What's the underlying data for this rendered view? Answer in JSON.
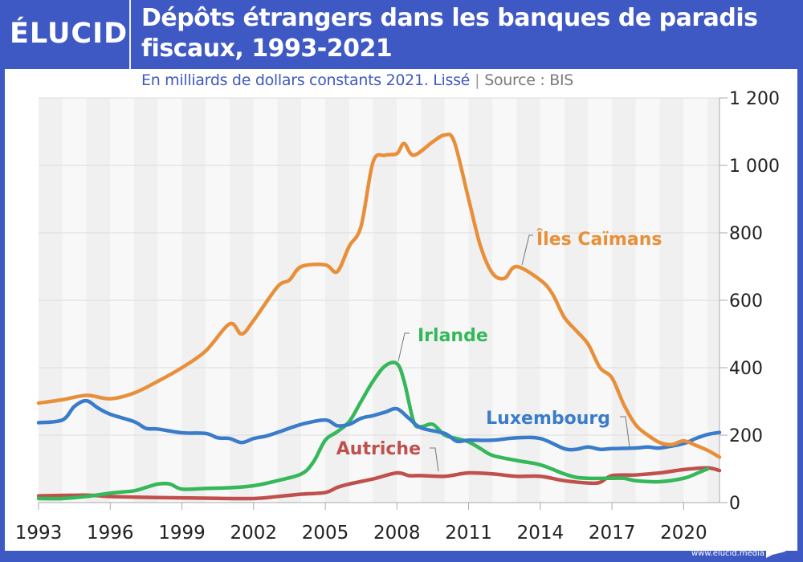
{
  "header": {
    "logo": "ÉLUCID",
    "title_line1": "Dépôts étrangers dans les banques de paradis",
    "title_line2": "fiscaux, 1993-2021",
    "subtitle": "En milliards de dollars constants 2021. Lissé",
    "separator": "|",
    "source": "Source : BIS"
  },
  "footer": {
    "url": "www.elucid.media"
  },
  "colors": {
    "brand": "#3f59c4",
    "iles_caimans": "#e88f3a",
    "luxembourg": "#3a7cc9",
    "irlande": "#34b85a",
    "autriche": "#c0504d"
  },
  "chart_data": {
    "type": "line",
    "title": "Dépôts étrangers dans les banques de paradis fiscaux, 1993-2021",
    "subtitle": "En milliards de dollars constants 2021. Lissé | Source : BIS",
    "xlabel": "",
    "ylabel": "",
    "xlim": [
      1993,
      2021.5
    ],
    "ylim": [
      0,
      1200
    ],
    "grid": true,
    "y_axis_position": "right",
    "x_ticks": [
      "1993",
      "1996",
      "1999",
      "2002",
      "2005",
      "2008",
      "2011",
      "2014",
      "2017",
      "2020"
    ],
    "y_ticks": [
      "0",
      "200",
      "400",
      "600",
      "800",
      "1 000",
      "1 200"
    ],
    "series": [
      {
        "name": "Îles Caïmans",
        "color": "#e88f3a",
        "x": [
          1993,
          1994,
          1995,
          1996,
          1997,
          1998,
          1999,
          2000,
          2001,
          2001.5,
          2002,
          2003,
          2003.5,
          2004,
          2005,
          2005.5,
          2006,
          2006.5,
          2007,
          2007.5,
          2008,
          2008.3,
          2008.7,
          2009.5,
          2010,
          2010.4,
          2011,
          2011.5,
          2012,
          2012.5,
          2013,
          2014,
          2014.5,
          2015,
          2015.5,
          2016,
          2016.5,
          2017,
          2017.5,
          2018,
          2018.5,
          2019,
          2019.5,
          2020,
          2020.5,
          2021,
          2021.5
        ],
        "values": [
          295,
          305,
          318,
          308,
          325,
          360,
          400,
          450,
          530,
          500,
          540,
          640,
          660,
          700,
          705,
          685,
          760,
          820,
          1010,
          1030,
          1035,
          1065,
          1030,
          1070,
          1090,
          1070,
          900,
          760,
          680,
          665,
          700,
          660,
          620,
          550,
          510,
          470,
          400,
          370,
          290,
          230,
          200,
          178,
          172,
          183,
          170,
          155,
          135
        ]
      },
      {
        "name": "Luxembourg",
        "color": "#3a7cc9",
        "x": [
          1993,
          1994,
          1994.5,
          1995,
          1995.5,
          1996,
          1997,
          1997.5,
          1998,
          1999,
          2000,
          2000.5,
          2001,
          2001.5,
          2002,
          2002.5,
          2003,
          2004,
          2005,
          2005.5,
          2006,
          2006.5,
          2007,
          2007.5,
          2008,
          2008.5,
          2009,
          2010,
          2010.5,
          2011,
          2012,
          2013,
          2014,
          2015,
          2015.5,
          2016,
          2016.5,
          2017,
          2018,
          2018.5,
          2019,
          2020,
          2020.5,
          2021,
          2021.5
        ],
        "values": [
          237,
          245,
          285,
          302,
          280,
          262,
          240,
          220,
          218,
          207,
          205,
          192,
          190,
          178,
          190,
          197,
          208,
          232,
          245,
          228,
          232,
          250,
          258,
          268,
          278,
          250,
          222,
          205,
          182,
          185,
          185,
          192,
          190,
          160,
          158,
          165,
          158,
          160,
          162,
          165,
          162,
          175,
          190,
          202,
          208
        ]
      },
      {
        "name": "Irlande",
        "color": "#34b85a",
        "x": [
          1993,
          1994,
          1995,
          1996,
          1997,
          1997.5,
          1998,
          1998.5,
          1999,
          2000,
          2001,
          2002,
          2003,
          2004,
          2004.5,
          2005,
          2005.5,
          2006,
          2006.5,
          2007,
          2007.5,
          2008,
          2008.3,
          2008.7,
          2009,
          2009.5,
          2010,
          2010.5,
          2011,
          2011.5,
          2012,
          2013,
          2014,
          2015,
          2015.5,
          2016,
          2017,
          2017.5,
          2018,
          2019,
          2020,
          2020.5,
          2021
        ],
        "values": [
          12,
          12,
          18,
          28,
          35,
          45,
          55,
          55,
          40,
          42,
          44,
          50,
          65,
          85,
          120,
          185,
          210,
          240,
          300,
          360,
          405,
          412,
          360,
          240,
          225,
          232,
          200,
          190,
          180,
          160,
          140,
          125,
          112,
          85,
          75,
          72,
          72,
          72,
          65,
          62,
          72,
          85,
          100
        ]
      },
      {
        "name": "Autriche",
        "color": "#c0504d",
        "x": [
          1993,
          1995,
          1996,
          1998,
          2000,
          2002,
          2003,
          2004,
          2005,
          2005.5,
          2006,
          2007,
          2008,
          2008.5,
          2009,
          2010,
          2011,
          2012,
          2013,
          2014,
          2015,
          2016,
          2016.5,
          2017,
          2018,
          2019,
          2020,
          2021,
          2021.5
        ],
        "values": [
          20,
          22,
          18,
          15,
          13,
          12,
          18,
          25,
          30,
          45,
          55,
          70,
          88,
          80,
          80,
          78,
          88,
          85,
          78,
          78,
          65,
          58,
          60,
          80,
          82,
          88,
          98,
          103,
          95
        ]
      }
    ],
    "annotations": [
      {
        "text": "Îles Caïmans",
        "series": "Îles Caïmans",
        "x": 2013,
        "y": 700
      },
      {
        "text": "Irlande",
        "series": "Irlande",
        "x": 2008,
        "y": 412
      },
      {
        "text": "Luxembourg",
        "series": "Luxembourg",
        "x": 2018.5,
        "y": 165
      },
      {
        "text": "Autriche",
        "series": "Autriche",
        "x": 2010.3,
        "y": 80
      }
    ]
  }
}
